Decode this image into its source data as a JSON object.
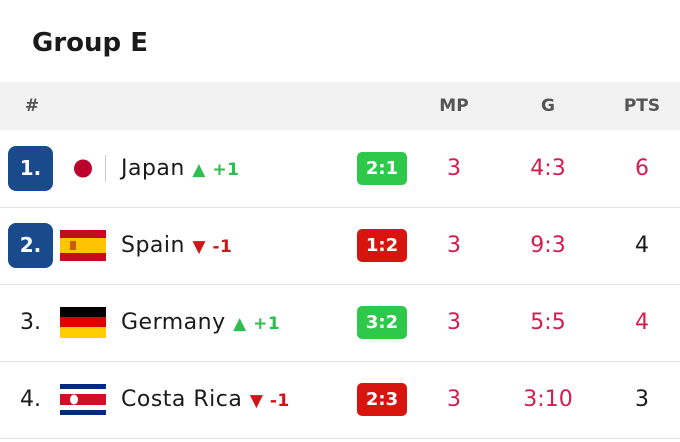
{
  "header": {
    "title": "Group E"
  },
  "table": {
    "columns": [
      "#",
      "MP",
      "G",
      "PTS"
    ],
    "rows": [
      {
        "rank": "1.",
        "team": "Japan",
        "change": "+1",
        "result": "2:1",
        "mp": "3",
        "g": "4:3",
        "pts": "6"
      },
      {
        "rank": "2.",
        "team": "Spain",
        "change": "-1",
        "result": "1:2",
        "mp": "3",
        "g": "9:3",
        "pts": "4"
      },
      {
        "rank": "3.",
        "team": "Germany",
        "change": "+1",
        "result": "3:2",
        "mp": "3",
        "g": "5:5",
        "pts": "4"
      },
      {
        "rank": "4.",
        "team": "Costa Rica",
        "change": "-1",
        "result": "2:3",
        "mp": "3",
        "g": "3:10",
        "pts": "3"
      }
    ]
  }
}
